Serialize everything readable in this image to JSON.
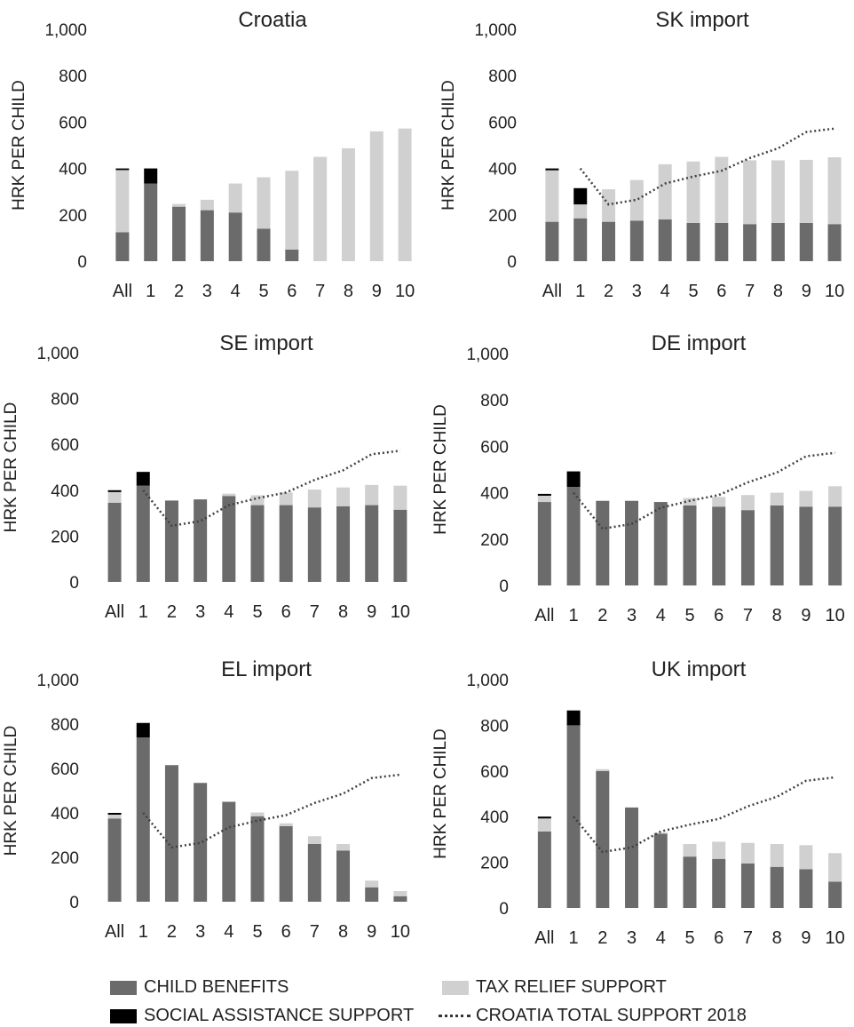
{
  "ylabel": "HRK PER CHILD",
  "yticks": [
    "0",
    "200",
    "400",
    "600",
    "800",
    "1,000"
  ],
  "legend": {
    "child_benefits": "CHILD BENEFITS",
    "tax_relief": "TAX RELIEF SUPPORT",
    "social_assistance": "SOCIAL ASSISTANCE SUPPORT",
    "croatia_total": "CROATIA TOTAL SUPPORT 2018"
  },
  "colors": {
    "child_benefits": "#6b6b6b",
    "tax_relief": "#d0d0d0",
    "social_assistance": "#000000",
    "croatia_total": "#404040"
  },
  "chart_data": [
    {
      "type": "bar",
      "title": "Croatia",
      "categories": [
        "All",
        "1",
        "2",
        "3",
        "4",
        "5",
        "6",
        "7",
        "8",
        "9",
        "10"
      ],
      "ylim": [
        0,
        1000
      ],
      "series": [
        {
          "name": "CHILD BENEFITS",
          "values": [
            125,
            335,
            235,
            220,
            210,
            140,
            50,
            0,
            0,
            0,
            0
          ]
        },
        {
          "name": "TAX RELIEF SUPPORT",
          "values": [
            268,
            0,
            12,
            45,
            125,
            222,
            340,
            450,
            487,
            560,
            572
          ]
        },
        {
          "name": "SOCIAL ASSISTANCE SUPPORT",
          "values": [
            7,
            65,
            0,
            0,
            0,
            0,
            0,
            0,
            0,
            0,
            0
          ]
        }
      ],
      "croatia_total": null
    },
    {
      "type": "bar",
      "title": "SK import",
      "categories": [
        "All",
        "1",
        "2",
        "3",
        "4",
        "5",
        "6",
        "7",
        "8",
        "9",
        "10"
      ],
      "ylim": [
        0,
        1000
      ],
      "series": [
        {
          "name": "CHILD BENEFITS",
          "values": [
            170,
            185,
            170,
            175,
            180,
            165,
            165,
            160,
            165,
            165,
            160
          ]
        },
        {
          "name": "TAX RELIEF SUPPORT",
          "values": [
            222,
            60,
            140,
            175,
            238,
            265,
            285,
            275,
            270,
            272,
            288
          ]
        },
        {
          "name": "SOCIAL ASSISTANCE SUPPORT",
          "values": [
            8,
            70,
            0,
            0,
            0,
            0,
            0,
            0,
            0,
            0,
            0
          ]
        }
      ],
      "croatia_total": [
        null,
        400,
        245,
        265,
        335,
        365,
        390,
        445,
        487,
        557,
        572
      ]
    },
    {
      "type": "bar",
      "title": "SE import",
      "categories": [
        "All",
        "1",
        "2",
        "3",
        "4",
        "5",
        "6",
        "7",
        "8",
        "9",
        "10"
      ],
      "ylim": [
        0,
        1000
      ],
      "series": [
        {
          "name": "CHILD BENEFITS",
          "values": [
            345,
            420,
            355,
            360,
            375,
            335,
            335,
            325,
            330,
            335,
            315
          ]
        },
        {
          "name": "TAX RELIEF SUPPORT",
          "values": [
            47,
            0,
            0,
            0,
            10,
            43,
            55,
            78,
            82,
            88,
            105
          ]
        },
        {
          "name": "SOCIAL ASSISTANCE SUPPORT",
          "values": [
            8,
            60,
            0,
            0,
            0,
            0,
            0,
            0,
            0,
            0,
            0
          ]
        }
      ],
      "croatia_total": [
        null,
        400,
        245,
        265,
        335,
        365,
        390,
        445,
        487,
        557,
        572
      ]
    },
    {
      "type": "bar",
      "title": "DE import",
      "categories": [
        "All",
        "1",
        "2",
        "3",
        "4",
        "5",
        "6",
        "7",
        "8",
        "9",
        "10"
      ],
      "ylim": [
        0,
        1000
      ],
      "series": [
        {
          "name": "CHILD BENEFITS",
          "values": [
            360,
            425,
            365,
            365,
            360,
            345,
            340,
            325,
            345,
            340,
            340
          ]
        },
        {
          "name": "TAX RELIEF SUPPORT",
          "values": [
            27,
            0,
            0,
            0,
            0,
            32,
            42,
            65,
            55,
            68,
            88
          ]
        },
        {
          "name": "SOCIAL ASSISTANCE SUPPORT",
          "values": [
            8,
            67,
            0,
            0,
            0,
            0,
            0,
            0,
            0,
            0,
            0
          ]
        }
      ],
      "croatia_total": [
        null,
        400,
        245,
        265,
        335,
        365,
        390,
        445,
        487,
        557,
        572
      ]
    },
    {
      "type": "bar",
      "title": "EL import",
      "categories": [
        "All",
        "1",
        "2",
        "3",
        "4",
        "5",
        "6",
        "7",
        "8",
        "9",
        "10"
      ],
      "ylim": [
        0,
        1000
      ],
      "series": [
        {
          "name": "CHILD BENEFITS",
          "values": [
            375,
            740,
            615,
            535,
            450,
            385,
            340,
            260,
            230,
            65,
            25
          ]
        },
        {
          "name": "TAX RELIEF SUPPORT",
          "values": [
            17,
            0,
            0,
            0,
            0,
            17,
            13,
            35,
            30,
            30,
            23
          ]
        },
        {
          "name": "SOCIAL ASSISTANCE SUPPORT",
          "values": [
            8,
            65,
            0,
            0,
            0,
            0,
            0,
            0,
            0,
            0,
            0
          ]
        }
      ],
      "croatia_total": [
        null,
        400,
        245,
        265,
        335,
        365,
        390,
        445,
        487,
        557,
        572
      ]
    },
    {
      "type": "bar",
      "title": "UK import",
      "categories": [
        "All",
        "1",
        "2",
        "3",
        "4",
        "5",
        "6",
        "7",
        "8",
        "9",
        "10"
      ],
      "ylim": [
        0,
        1000
      ],
      "series": [
        {
          "name": "CHILD BENEFITS",
          "values": [
            335,
            800,
            600,
            440,
            325,
            225,
            215,
            195,
            180,
            170,
            115
          ]
        },
        {
          "name": "TAX RELIEF SUPPORT",
          "values": [
            57,
            0,
            8,
            0,
            5,
            55,
            75,
            90,
            100,
            105,
            125
          ]
        },
        {
          "name": "SOCIAL ASSISTANCE SUPPORT",
          "values": [
            8,
            65,
            0,
            0,
            0,
            0,
            0,
            0,
            0,
            0,
            0
          ]
        }
      ],
      "croatia_total": [
        null,
        400,
        245,
        265,
        335,
        365,
        390,
        445,
        487,
        557,
        572
      ]
    }
  ]
}
